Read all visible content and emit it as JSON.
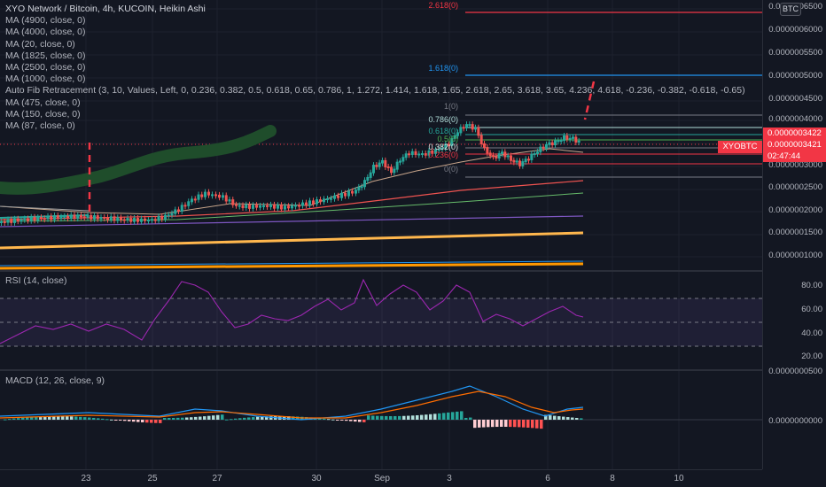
{
  "legend": {
    "title": "XYO Network / Bitcoin, 4h, KUCOIN, Heikin Ashi",
    "indicators": [
      "MA (4900, close, 0)",
      "MA (4000, close, 0)",
      "MA (20, close, 0)",
      "MA (1825, close, 0)",
      "MA (2500, close, 0)",
      "MA (1000, close, 0)",
      "Auto Fib Retracement (3, 10, Values, Left, 0, 0.236, 0.382, 0.5, 0.618, 0.65, 0.786, 1, 1.272, 1.414, 1.618, 1.65, 2.618, 2.65, 3.618, 3.65, 4.236, 4.618, -0.236, -0.382, -0.618, -0.65)",
      "MA (475, close, 0)",
      "MA (150, close, 0)",
      "MA (87, close, 0)"
    ]
  },
  "currency_badge": "BTC",
  "price_axis": {
    "ticks": [
      "0.0000006500",
      "0.0000006000",
      "0.0000005500",
      "0.0000005000",
      "0.0000004500",
      "0.0000004000",
      "0.0000003500",
      "0.0000003000",
      "0.0000002500",
      "0.0000002000",
      "0.0000001500",
      "0.0000001000"
    ],
    "tag_high": "0.0000003422",
    "tag_last": "0.0000003421",
    "countdown": "02:47:44",
    "symbol_tag": "XYOBTC"
  },
  "fib_levels": [
    "2.618(0)",
    "1.618(0)",
    "1(0)",
    "0.786(0)",
    "0.618(0)",
    "0.5(0)",
    "0.382(0)",
    "0.236(0)",
    "0(0)"
  ],
  "colors": {
    "background": "#131722",
    "up": "#26a69a",
    "down": "#ef5350",
    "fib_2618": "#f23645",
    "fib_1618": "#2196f3",
    "rsi_line": "#9c27b0",
    "macd_line": "#2196f3",
    "signal_line": "#ff6d00",
    "orange_ma": "#ff9800"
  },
  "rsi": {
    "label": "RSI (14, close)",
    "ticks": [
      "80.00",
      "60.00",
      "40.00",
      "20.00"
    ]
  },
  "macd": {
    "label": "MACD (12, 26, close, 9)",
    "ticks": [
      "0.0000000500",
      "0.0000000000"
    ]
  },
  "time_axis": {
    "labels": [
      "23",
      "25",
      "27",
      "30",
      "Sep",
      "3",
      "6",
      "8",
      "10"
    ]
  }
}
